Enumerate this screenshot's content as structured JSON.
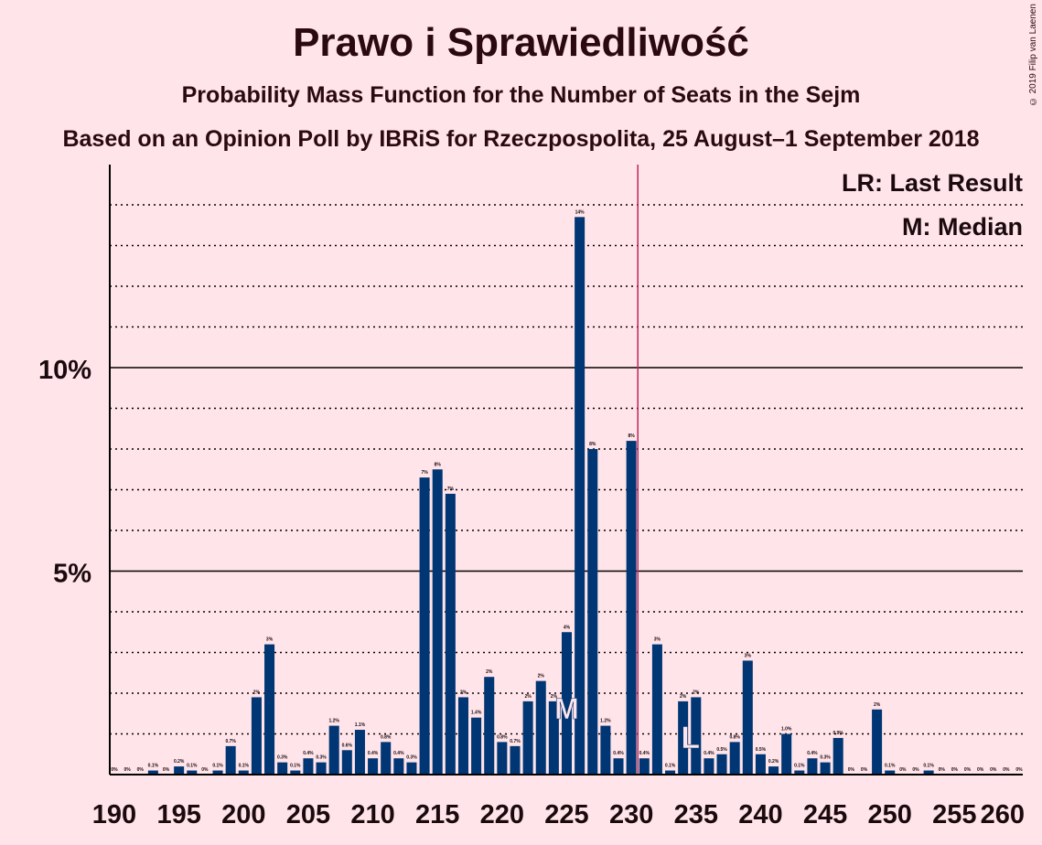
{
  "header": {
    "title": "Prawo i Sprawiedliwość",
    "subtitle": "Probability Mass Function for the Number of Seats in the Sejm",
    "source": "Based on an Opinion Poll by IBRiS for Rzeczpospolita, 25 August–1 September 2018",
    "copyright": "© 2019 Filip van Laenen"
  },
  "legend": {
    "lr": "LR: Last Result",
    "median": "M: Median"
  },
  "colors": {
    "background": "#ffe4e9",
    "bar": "#003673",
    "last_result_line": "#c0245c",
    "text": "#1a0a0e"
  },
  "chart_data": {
    "type": "bar",
    "xlabel": "",
    "ylabel": "",
    "x": [
      190,
      191,
      192,
      193,
      194,
      195,
      196,
      197,
      198,
      199,
      200,
      201,
      202,
      203,
      204,
      205,
      206,
      207,
      208,
      209,
      210,
      211,
      212,
      213,
      214,
      215,
      216,
      217,
      218,
      219,
      220,
      221,
      222,
      223,
      224,
      225,
      226,
      227,
      228,
      229,
      230,
      231,
      232,
      233,
      234,
      235,
      236,
      237,
      238,
      239,
      240,
      241,
      242,
      243,
      244,
      245,
      246,
      247,
      248,
      249,
      250,
      251,
      252,
      253,
      254,
      255,
      256,
      257,
      258,
      259,
      260
    ],
    "values": [
      0,
      0,
      0,
      0.1,
      0,
      0.2,
      0.1,
      0,
      0.1,
      0.7,
      0.1,
      1.9,
      3.2,
      0.3,
      0.1,
      0.4,
      0.3,
      1.2,
      0.6,
      1.1,
      0.4,
      0.8,
      0.4,
      0.3,
      7.3,
      7.5,
      6.9,
      1.9,
      1.4,
      2.4,
      0.8,
      0.7,
      1.8,
      2.3,
      1.8,
      3.5,
      13.7,
      8.0,
      1.2,
      0.4,
      8.2,
      0.4,
      3.2,
      0.1,
      1.8,
      1.9,
      0.4,
      0.5,
      0.8,
      2.8,
      0.5,
      0.2,
      1.0,
      0.1,
      0.4,
      0.3,
      0.9,
      0,
      0,
      1.6,
      0.1,
      0,
      0,
      0.1,
      0,
      0,
      0,
      0,
      0,
      0,
      0
    ],
    "data_labels": [
      "0%",
      "0%",
      "0%",
      "0.1%",
      "0%",
      "0.2%",
      "0.1%",
      "0%",
      "0.1%",
      "0.7%",
      "0.1%",
      "2%",
      "3%",
      "0.3%",
      "0.1%",
      "0.4%",
      "0.3%",
      "1.2%",
      "0.6%",
      "1.1%",
      "0.4%",
      "0.8%",
      "0.4%",
      "0.3%",
      "7%",
      "8%",
      "7%",
      "2%",
      "1.4%",
      "2%",
      "0.8%",
      "0.7%",
      "2%",
      "2%",
      "2%",
      "4%",
      "14%",
      "8%",
      "1.2%",
      "0.4%",
      "8%",
      "0.4%",
      "3%",
      "0.1%",
      "2%",
      "2%",
      "0.4%",
      "0.5%",
      "0.8%",
      "3%",
      "0.5%",
      "0.2%",
      "1.0%",
      "0.1%",
      "0.4%",
      "0.3%",
      "0.9%",
      "0%",
      "0%",
      "2%",
      "0.1%",
      "0%",
      "0%",
      "0.1%",
      "0%",
      "0%",
      "0%",
      "0%",
      "0%",
      "0%",
      "0%"
    ],
    "x_ticks": [
      "190",
      "195",
      "200",
      "205",
      "210",
      "215",
      "220",
      "225",
      "230",
      "235",
      "240",
      "245",
      "250",
      "255",
      "260"
    ],
    "y_ticks": [
      "5%",
      "10%"
    ],
    "xlim": [
      190,
      260
    ],
    "ylim": [
      0,
      15
    ],
    "grid": "dotted every 1%, solid at 5% and 10%",
    "last_result": 235,
    "last_result_marker": "L",
    "median": 225,
    "median_marker": "M",
    "majority_line": 230.5
  }
}
